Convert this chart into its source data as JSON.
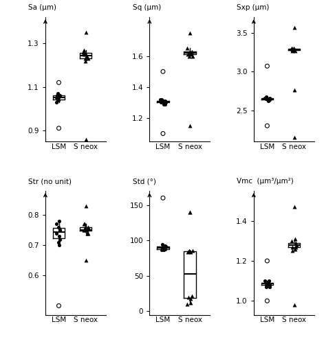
{
  "Sa": {
    "LSM": {
      "data": [
        1.04,
        1.06,
        1.05,
        1.07,
        1.05,
        1.03,
        1.06,
        1.04,
        1.05,
        1.06
      ],
      "outliers_open": [
        1.12,
        0.91
      ]
    },
    "Sneox": {
      "data": [
        1.22,
        1.24,
        1.25,
        1.23,
        1.26,
        1.24,
        1.23,
        1.25,
        1.26,
        1.27
      ],
      "outliers_filled": [
        1.35,
        0.86
      ]
    },
    "ylabel": "Sa (μm)",
    "ylim": [
      0.85,
      1.42
    ],
    "yticks": [
      0.9,
      1.1,
      1.3
    ]
  },
  "Sq": {
    "LSM": {
      "data": [
        1.31,
        1.3,
        1.32,
        1.29,
        1.31,
        1.3,
        1.31,
        1.32,
        1.3,
        1.29
      ],
      "outliers_open": [
        1.5,
        1.1
      ]
    },
    "Sneox": {
      "data": [
        1.61,
        1.62,
        1.6,
        1.63,
        1.61,
        1.6,
        1.62,
        1.63,
        1.65
      ],
      "outliers_filled": [
        1.75,
        1.15
      ]
    },
    "ylabel": "Sq (μm)",
    "ylim": [
      1.05,
      1.85
    ],
    "yticks": [
      1.2,
      1.4,
      1.6
    ]
  },
  "Sxp": {
    "LSM": {
      "data": [
        2.64,
        2.66,
        2.62,
        2.65,
        2.63,
        2.66,
        2.65,
        2.64,
        2.67,
        2.65
      ],
      "outliers_open": [
        3.07,
        2.3
      ]
    },
    "Sneox": {
      "data": [
        3.28,
        3.3,
        3.27,
        3.29,
        3.28,
        3.3,
        3.29,
        3.28,
        3.27
      ],
      "outliers_filled": [
        3.57,
        2.76,
        2.15
      ]
    },
    "ylabel": "Sxp (μm)",
    "ylim": [
      2.1,
      3.7
    ],
    "yticks": [
      2.5,
      3.0,
      3.5
    ]
  },
  "Str": {
    "LSM": {
      "data": [
        0.73,
        0.75,
        0.74,
        0.76,
        0.72,
        0.71,
        0.77,
        0.78,
        0.75,
        0.7
      ],
      "outliers_open": [
        0.5
      ]
    },
    "Sneox": {
      "data": [
        0.74,
        0.75,
        0.76,
        0.75,
        0.77,
        0.74,
        0.76,
        0.75,
        0.76,
        0.77,
        0.74,
        0.75
      ],
      "outliers_filled": [
        0.65,
        0.83
      ]
    },
    "ylabel": "Str (no unit)",
    "ylim": [
      0.47,
      0.88
    ],
    "yticks": [
      0.6,
      0.7,
      0.8
    ]
  },
  "Std": {
    "LSM": {
      "data": [
        88,
        92,
        90,
        94,
        87,
        93,
        88,
        92,
        90,
        87
      ],
      "outliers_open": [
        160
      ]
    },
    "Sneox": {
      "data": [
        84,
        86,
        85,
        84,
        86,
        20,
        22,
        18,
        10,
        12
      ],
      "outliers_filled": [
        140,
        140
      ]
    },
    "ylabel": "Std (°)",
    "ylim": [
      -5,
      170
    ],
    "yticks": [
      0,
      50,
      100,
      150
    ]
  },
  "Vmc": {
    "LSM": {
      "data": [
        1.08,
        1.09,
        1.1,
        1.07,
        1.08,
        1.09,
        1.1,
        1.07,
        1.09,
        1.08
      ],
      "outliers_open": [
        1.2,
        1.0
      ]
    },
    "Sneox": {
      "data": [
        1.25,
        1.27,
        1.28,
        1.26,
        1.3,
        1.27,
        1.29,
        1.28,
        1.31
      ],
      "outliers_filled": [
        1.47,
        0.98
      ]
    },
    "ylabel": "Vmc  (μm³/μm²)",
    "ylim": [
      0.93,
      1.55
    ],
    "yticks": [
      1.0,
      1.2,
      1.4
    ]
  }
}
